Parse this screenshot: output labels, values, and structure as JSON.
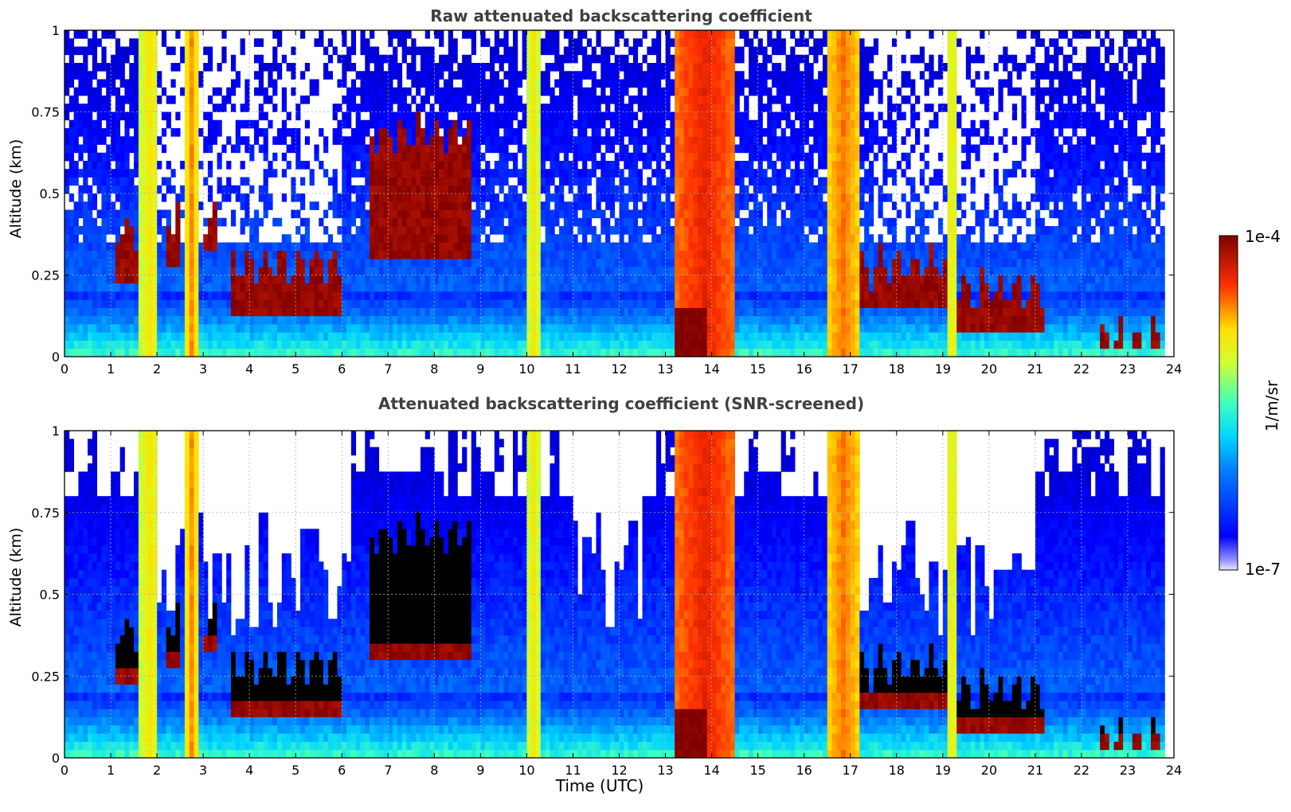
{
  "chart_data": [
    {
      "type": "heatmap",
      "title": "Raw attenuated backscattering coefficient",
      "xlabel": "",
      "ylabel": "Altitude (km)",
      "xlim": [
        0,
        24
      ],
      "ylim": [
        0,
        1
      ],
      "xticks": [
        "0",
        "1",
        "2",
        "3",
        "4",
        "5",
        "6",
        "7",
        "8",
        "9",
        "10",
        "11",
        "12",
        "13",
        "14",
        "15",
        "16",
        "17",
        "18",
        "19",
        "20",
        "21",
        "22",
        "23",
        "24"
      ],
      "yticks": [
        "0",
        "0.25",
        "0.5",
        "0.75",
        "1"
      ],
      "grid": true,
      "scale": "log",
      "screened": false,
      "features": {
        "aerosol_haze_top_km": 0.2,
        "low_cloud_layers": [
          {
            "x": [
              1.15,
              1.7
            ],
            "base_km": 0.22,
            "top_km": 0.4
          },
          {
            "x": [
              2.2,
              2.45
            ],
            "base_km": 0.28,
            "top_km": 0.45
          },
          {
            "x": [
              3.0,
              3.3
            ],
            "base_km": 0.32,
            "top_km": 0.45
          },
          {
            "x": [
              3.6,
              6.0
            ],
            "base_km": 0.12,
            "top_km": 0.3
          },
          {
            "x": [
              6.6,
              8.8
            ],
            "base_km": 0.3,
            "top_km": 0.7
          },
          {
            "x": [
              16.6,
              19.2
            ],
            "base_km": 0.15,
            "top_km": 0.3
          },
          {
            "x": [
              19.2,
              21.2
            ],
            "base_km": 0.08,
            "top_km": 0.22
          },
          {
            "x": [
              22.2,
              23.8
            ],
            "base_km": 0.02,
            "top_km": 0.07
          }
        ],
        "precipitation_columns": [
          {
            "x": [
              1.65,
              2.05
            ],
            "value": "yellow"
          },
          {
            "x": [
              2.65,
              2.85
            ],
            "value": "yellow-red"
          },
          {
            "x": [
              10.05,
              10.25
            ],
            "value": "yellow"
          },
          {
            "x": [
              13.2,
              14.5
            ],
            "value": "red"
          },
          {
            "x": [
              16.5,
              17.2
            ],
            "value": "orange"
          },
          {
            "x": [
              19.1,
              19.3
            ],
            "value": "yellow"
          }
        ]
      }
    },
    {
      "type": "heatmap",
      "title": "Attenuated backscattering coefficient (SNR-screened)",
      "xlabel": "Time (UTC)",
      "ylabel": "Altitude (km)",
      "xlim": [
        0,
        24
      ],
      "ylim": [
        0,
        1
      ],
      "xticks": [
        "0",
        "1",
        "2",
        "3",
        "4",
        "5",
        "6",
        "7",
        "8",
        "9",
        "10",
        "11",
        "12",
        "13",
        "14",
        "15",
        "16",
        "17",
        "18",
        "19",
        "20",
        "21",
        "22",
        "23",
        "24"
      ],
      "yticks": [
        "0",
        "0.25",
        "0.5",
        "0.75",
        "1"
      ],
      "grid": true,
      "scale": "log",
      "screened": true
    }
  ],
  "colorbar": {
    "label": "1/m/sr",
    "max_label": "1e-4",
    "min_label": "1e-7",
    "colormap": "jet",
    "range": [
      1e-07,
      0.0001
    ]
  }
}
